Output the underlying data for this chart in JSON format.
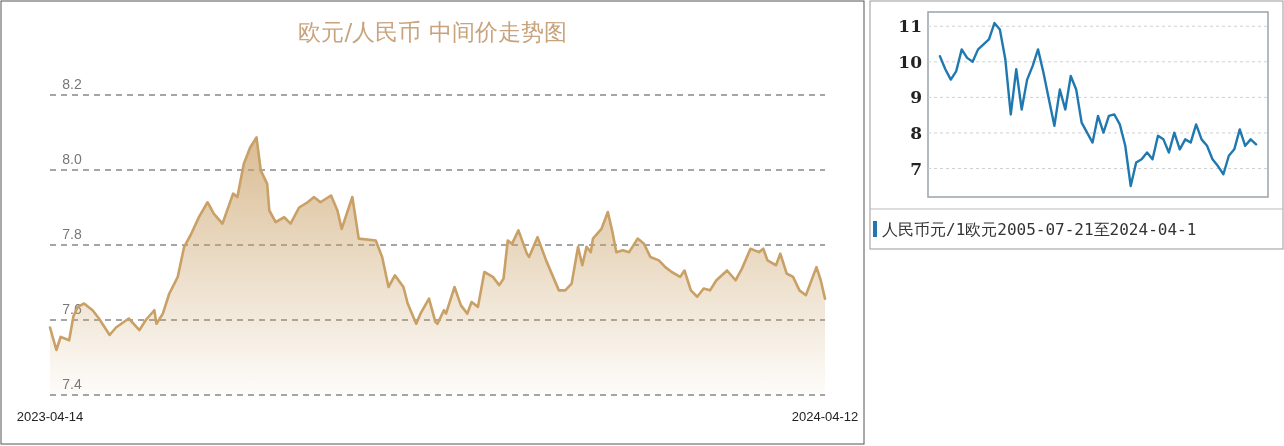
{
  "chart_data": [
    {
      "type": "area",
      "title": "欧元/人民币 中间价走势图",
      "color": "#c9a066",
      "grid": "y",
      "x": [
        "2023-04-14",
        "2023-04-17",
        "2023-04-19",
        "2023-04-23",
        "2023-04-25",
        "2023-04-27",
        "2023-04-30",
        "2023-05-04",
        "2023-05-07",
        "2023-05-12",
        "2023-05-15",
        "2023-05-21",
        "2023-05-26",
        "2023-05-29",
        "2023-06-02",
        "2023-06-03",
        "2023-06-06",
        "2023-06-09",
        "2023-06-13",
        "2023-06-16",
        "2023-06-19",
        "2023-06-23",
        "2023-06-27",
        "2023-06-30",
        "2023-07-04",
        "2023-07-09",
        "2023-07-11",
        "2023-07-14",
        "2023-07-17",
        "2023-07-20",
        "2023-07-22",
        "2023-07-25",
        "2023-07-26",
        "2023-07-29",
        "2023-08-02",
        "2023-08-05",
        "2023-08-09",
        "2023-08-13",
        "2023-08-16",
        "2023-08-19",
        "2023-08-24",
        "2023-08-27",
        "2023-08-29",
        "2023-09-03",
        "2023-09-06",
        "2023-09-14",
        "2023-09-17",
        "2023-09-20",
        "2023-09-23",
        "2023-09-27",
        "2023-09-29",
        "2023-10-03",
        "2023-10-05",
        "2023-10-09",
        "2023-10-12",
        "2023-10-13",
        "2023-10-16",
        "2023-10-17",
        "2023-10-21",
        "2023-10-24",
        "2023-10-27",
        "2023-10-29",
        "2023-11-01",
        "2023-11-04",
        "2023-11-08",
        "2023-11-11",
        "2023-11-13",
        "2023-11-15",
        "2023-11-17",
        "2023-11-20",
        "2023-11-24",
        "2023-11-25",
        "2023-11-29",
        "2023-12-03",
        "2023-12-09",
        "2023-12-12",
        "2023-12-15",
        "2023-12-18",
        "2023-12-20",
        "2023-12-22",
        "2023-12-24",
        "2023-12-25",
        "2023-12-29",
        "2024-01-01",
        "2024-01-03",
        "2024-01-05",
        "2024-01-08",
        "2024-01-11",
        "2024-01-15",
        "2024-01-18",
        "2024-01-21",
        "2024-01-25",
        "2024-01-28",
        "2024-01-31",
        "2024-02-04",
        "2024-02-06",
        "2024-02-09",
        "2024-02-12",
        "2024-02-15",
        "2024-02-18",
        "2024-02-21",
        "2024-02-26",
        "2024-03-01",
        "2024-03-04",
        "2024-03-08",
        "2024-03-12",
        "2024-03-14",
        "2024-03-16",
        "2024-03-20",
        "2024-03-22",
        "2024-03-25",
        "2024-03-28",
        "2024-03-31",
        "2024-04-03",
        "2024-04-08",
        "2024-04-10",
        "2024-04-12"
      ],
      "values": [
        7.58,
        7.52,
        7.555,
        7.546,
        7.61,
        7.635,
        7.644,
        7.626,
        7.604,
        7.56,
        7.58,
        7.604,
        7.573,
        7.6,
        7.626,
        7.59,
        7.617,
        7.67,
        7.715,
        7.795,
        7.826,
        7.875,
        7.914,
        7.883,
        7.857,
        7.937,
        7.928,
        8.016,
        8.06,
        8.087,
        7.999,
        7.963,
        7.892,
        7.861,
        7.874,
        7.857,
        7.9,
        7.914,
        7.928,
        7.914,
        7.932,
        7.892,
        7.843,
        7.928,
        7.817,
        7.812,
        7.768,
        7.688,
        7.719,
        7.688,
        7.644,
        7.59,
        7.617,
        7.657,
        7.595,
        7.59,
        7.626,
        7.617,
        7.688,
        7.639,
        7.617,
        7.648,
        7.635,
        7.728,
        7.715,
        7.693,
        7.71,
        7.812,
        7.803,
        7.839,
        7.777,
        7.768,
        7.821,
        7.759,
        7.679,
        7.679,
        7.697,
        7.795,
        7.746,
        7.795,
        7.781,
        7.817,
        7.843,
        7.888,
        7.839,
        7.781,
        7.786,
        7.781,
        7.817,
        7.803,
        7.768,
        7.759,
        7.741,
        7.728,
        7.715,
        7.732,
        7.679,
        7.662,
        7.684,
        7.679,
        7.706,
        7.732,
        7.706,
        7.737,
        7.79,
        7.781,
        7.79,
        7.759,
        7.746,
        7.777,
        7.724,
        7.715,
        7.679,
        7.666,
        7.741,
        7.706,
        7.657
      ],
      "xlim": [
        "2023-04-14",
        "2024-04-12"
      ],
      "xticks": [
        {
          "value": "2023-04-14",
          "label": "2023-04-14"
        },
        {
          "value": "2024-04-12",
          "label": "2024-04-12"
        }
      ],
      "ylim": [
        7.4,
        8.2
      ],
      "yticks": [
        7.4,
        7.6,
        7.8,
        {
          "value": 8.0,
          "label": "8.0"
        },
        8.2
      ]
    },
    {
      "type": "line",
      "grid": "y",
      "legend": "bottom",
      "tick_labels": "y",
      "categories": [
        null,
        null,
        null,
        null,
        null,
        null,
        null,
        null,
        null,
        null,
        null,
        null,
        null,
        null,
        null,
        null,
        null,
        null,
        null,
        null,
        null,
        null,
        null,
        null,
        null,
        null,
        null,
        null,
        null,
        null,
        null,
        null,
        null,
        null,
        null,
        null,
        null,
        null,
        null,
        null,
        null,
        null,
        null,
        null,
        null,
        null,
        null,
        null,
        null,
        null,
        null,
        null,
        null,
        null,
        null,
        null,
        null,
        null,
        null
      ],
      "series": [
        {
          "name": "人民币元/1欧元2005-07-21至2024-04-1",
          "color": "#1f78b0",
          "values": [
            10.16,
            9.79,
            9.5,
            9.74,
            10.35,
            10.11,
            10.0,
            10.35,
            10.49,
            10.63,
            11.09,
            10.91,
            10.07,
            8.52,
            9.79,
            8.66,
            9.5,
            9.88,
            10.35,
            9.69,
            8.94,
            8.2,
            9.22,
            8.66,
            9.6,
            9.22,
            8.29,
            8.01,
            7.73,
            8.48,
            8.01,
            8.48,
            8.52,
            8.24,
            7.64,
            6.51,
            7.17,
            7.26,
            7.45,
            7.26,
            7.92,
            7.82,
            7.45,
            8.01,
            7.54,
            7.82,
            7.73,
            8.24,
            7.82,
            7.64,
            7.26,
            7.07,
            6.84,
            7.36,
            7.54,
            8.1,
            7.64,
            7.82,
            7.68
          ]
        }
      ],
      "ylim": [
        6.2,
        11.4
      ],
      "yticks": [
        7,
        8,
        9,
        10,
        11
      ]
    }
  ]
}
